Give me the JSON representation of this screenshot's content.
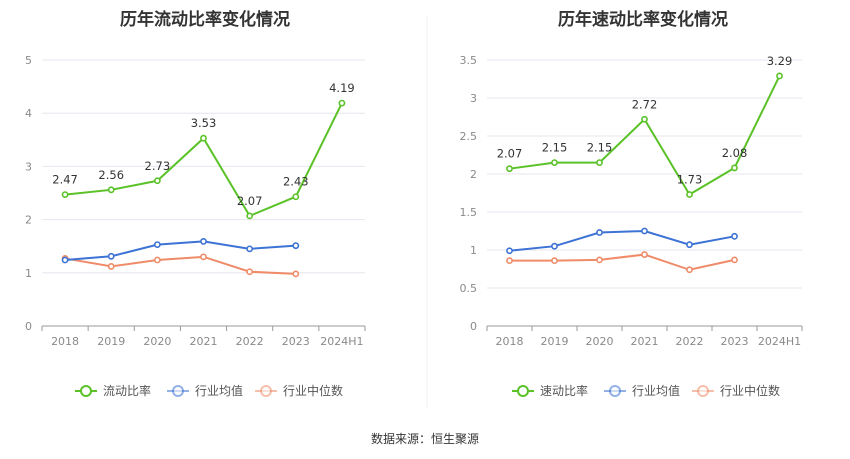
{
  "footer": {
    "source": "数据来源：恒生聚源"
  },
  "legend": [
    "流动比率",
    "行业均值",
    "行业中位数"
  ],
  "legend_right": [
    "速动比率",
    "行业均值",
    "行业中位数"
  ],
  "colors": {
    "main": "#5ac227",
    "avg": "#3c73d4",
    "median": "#ef8b68",
    "grid": "#e6e6ef",
    "axis": "#999999"
  },
  "chart_data": [
    {
      "type": "line",
      "title": "历年流动比率变化情况",
      "categories": [
        "2018",
        "2019",
        "2020",
        "2021",
        "2022",
        "2023",
        "2024H1"
      ],
      "ylim": [
        0,
        5
      ],
      "yticks": [
        0,
        1,
        2,
        3,
        4,
        5
      ],
      "ytick_labels": [
        "0",
        "1",
        "2",
        "3",
        "4",
        "5"
      ],
      "series": [
        {
          "name": "流动比率",
          "color_key": "main",
          "labels": true,
          "values": [
            2.47,
            2.56,
            2.73,
            3.53,
            2.07,
            2.43,
            4.19
          ],
          "value_labels": [
            "2.47",
            "2.56",
            "2.73",
            "3.53",
            "2.07",
            "2.43",
            "4.19"
          ]
        },
        {
          "name": "行业均值",
          "color_key": "avg",
          "labels": false,
          "values": [
            1.24,
            1.31,
            1.53,
            1.59,
            1.45,
            1.51,
            null
          ]
        },
        {
          "name": "行业中位数",
          "color_key": "median",
          "labels": false,
          "values": [
            1.27,
            1.12,
            1.24,
            1.3,
            1.02,
            0.98,
            null
          ]
        }
      ]
    },
    {
      "type": "line",
      "title": "历年速动比率变化情况",
      "categories": [
        "2018",
        "2019",
        "2020",
        "2021",
        "2022",
        "2023",
        "2024H1"
      ],
      "ylim": [
        0,
        3.5
      ],
      "yticks": [
        0,
        0.5,
        1,
        1.5,
        2,
        2.5,
        3,
        3.5
      ],
      "ytick_labels": [
        "0",
        "0.5",
        "1",
        "1.5",
        "2",
        "2.5",
        "3",
        "3.5"
      ],
      "series": [
        {
          "name": "速动比率",
          "color_key": "main",
          "labels": true,
          "values": [
            2.07,
            2.15,
            2.15,
            2.72,
            1.73,
            2.08,
            3.29
          ],
          "value_labels": [
            "2.07",
            "2.15",
            "2.15",
            "2.72",
            "1.73",
            "2.08",
            "3.29"
          ]
        },
        {
          "name": "行业均值",
          "color_key": "avg",
          "labels": false,
          "values": [
            0.99,
            1.05,
            1.23,
            1.25,
            1.07,
            1.18,
            null
          ]
        },
        {
          "name": "行业中位数",
          "color_key": "median",
          "labels": false,
          "values": [
            0.86,
            0.86,
            0.87,
            0.94,
            0.74,
            0.87,
            null
          ]
        }
      ]
    }
  ]
}
